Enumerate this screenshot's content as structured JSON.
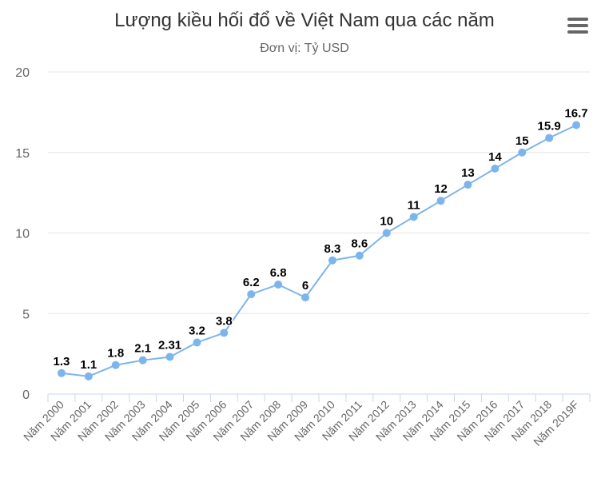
{
  "chart_data": {
    "type": "line",
    "title": "Lượng kiều hối đổ về Việt Nam qua các năm",
    "subtitle": "Đơn vị: Tỷ USD",
    "xlabel": "",
    "ylabel": "",
    "ylim": [
      0,
      20
    ],
    "yticks": [
      0,
      5,
      10,
      15,
      20
    ],
    "grid": true,
    "line_color": "#7cb5ec",
    "categories": [
      "Năm 2000",
      "Năm 2001",
      "Năm 2002",
      "Năm 2003",
      "Năm 2004",
      "Năm 2005",
      "Năm 2006",
      "Năm 2007",
      "Năm 2008",
      "Năm 2009",
      "Năm 2010",
      "Năm 2011",
      "Năm 2012",
      "Năm 2013",
      "Năm 2014",
      "Năm 2015",
      "Năm 2016",
      "Năm 2017",
      "Năm 2018",
      "Năm 2019F"
    ],
    "series": [
      {
        "values": [
          1.3,
          1.1,
          1.8,
          2.1,
          2.31,
          3.2,
          3.8,
          6.2,
          6.8,
          6,
          8.3,
          8.6,
          10,
          11,
          12,
          13,
          14,
          15,
          15.9,
          16.7
        ],
        "labels": [
          "1.3",
          "1.1",
          "1.8",
          "2.1",
          "2.31",
          "3.2",
          "3.8",
          "6.2",
          "6.8",
          "6",
          "8.3",
          "8.6",
          "10",
          "11",
          "12",
          "13",
          "14",
          "15",
          "15.9",
          "16.7"
        ]
      }
    ]
  },
  "menu": {
    "icon": "hamburger-menu-icon"
  }
}
